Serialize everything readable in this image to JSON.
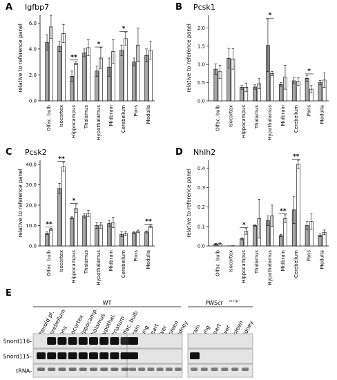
{
  "panels": {
    "A": "A",
    "B": "B",
    "C": "C",
    "D": "D",
    "E": "E"
  },
  "chart_data": [
    {
      "panel": "A",
      "type": "bar",
      "title": "Igfbp7",
      "ylabel": "relative to reference panel",
      "categories": [
        "Olfac. bulb",
        "Isocortex",
        "Hippocampus",
        "Thalamus",
        "Hypothalamus",
        "Midbrain",
        "Cerebellum",
        "Pons",
        "Medulla"
      ],
      "yticks": [
        "0.0",
        "2.0",
        "4.0",
        "6.0"
      ],
      "ylim": [
        0,
        6.6
      ],
      "series": [
        {
          "fill": "#a6a6a6",
          "values": [
            4.5,
            4.2,
            1.9,
            3.7,
            2.3,
            2.6,
            3.9,
            3.0,
            3.5
          ],
          "errors": [
            0.6,
            0.4,
            0.4,
            0.3,
            0.4,
            0.7,
            0.4,
            0.3,
            0.5
          ]
        },
        {
          "fill": "#ffffff",
          "values": [
            5.7,
            5.2,
            2.9,
            4.1,
            3.3,
            3.8,
            4.8,
            4.3,
            3.9
          ],
          "errors": [
            0.9,
            0.7,
            0.1,
            0.6,
            0.8,
            0.9,
            0.5,
            1.3,
            0.7
          ]
        }
      ],
      "significance": [
        {
          "index": 2,
          "label": "**",
          "level": 3.15
        },
        {
          "index": 4,
          "label": "*",
          "level": 4.15
        },
        {
          "index": 6,
          "label": "*",
          "level": 5.35
        }
      ]
    },
    {
      "panel": "B",
      "type": "bar",
      "title": "Pcsk1",
      "ylabel": "relative to reference panel",
      "categories": [
        "Olfac. bulb",
        "Isocortex",
        "Hippocampus",
        "Thalamus",
        "Hypothalamus",
        "Midbrain",
        "Cerebellum",
        "Pons",
        "Medulla"
      ],
      "yticks": [
        "0.0",
        "0.5",
        "1.0",
        "1.5",
        "2.0"
      ],
      "ylim": [
        0,
        2.35
      ],
      "series": [
        {
          "fill": "#a6a6a6",
          "values": [
            0.87,
            1.17,
            0.37,
            0.38,
            1.52,
            0.45,
            0.55,
            0.62,
            0.5
          ],
          "errors": [
            0.14,
            0.27,
            0.05,
            0.06,
            0.72,
            0.05,
            0.08,
            0.08,
            0.06
          ]
        },
        {
          "fill": "#ffffff",
          "values": [
            0.8,
            1.15,
            0.37,
            0.47,
            0.75,
            0.65,
            0.53,
            0.32,
            0.57
          ],
          "errors": [
            0.18,
            0.28,
            0.12,
            0.14,
            0.06,
            0.33,
            0.1,
            0.1,
            0.2
          ]
        }
      ],
      "significance": [
        {
          "index": 4,
          "label": "*",
          "level": 2.27
        },
        {
          "index": 7,
          "label": "*",
          "level": 0.74
        }
      ]
    },
    {
      "panel": "C",
      "type": "bar",
      "title": "Pcsk2",
      "ylabel": "relative to reference panel",
      "categories": [
        "Olfac. bulb",
        "Isocortex",
        "Hippocampus",
        "Thalamus",
        "Hypothalamus",
        "Midbrain",
        "Cerebellum",
        "Pons",
        "Medulla"
      ],
      "yticks": [
        "0.0",
        "10.0",
        "20.0",
        "30.0",
        "40.0"
      ],
      "ylim": [
        0,
        42
      ],
      "series": [
        {
          "fill": "#a6a6a6",
          "values": [
            6.2,
            28.2,
            13.8,
            14.8,
            10.0,
            11.0,
            5.7,
            6.5,
            6.9
          ],
          "errors": [
            0.7,
            2.5,
            0.5,
            1.0,
            1.5,
            1.5,
            1.2,
            0.4,
            0.5
          ]
        },
        {
          "fill": "#ffffff",
          "values": [
            8.2,
            38.8,
            18.3,
            16.0,
            10.2,
            11.5,
            6.2,
            7.2,
            9.6
          ],
          "errors": [
            0.5,
            2.2,
            2.0,
            1.5,
            1.5,
            2.5,
            1.0,
            0.6,
            0.6
          ]
        }
      ],
      "significance": [
        {
          "index": 0,
          "label": "**",
          "level": 9.3
        },
        {
          "index": 1,
          "label": "**",
          "level": 41.4
        },
        {
          "index": 2,
          "label": "*",
          "level": 20.8
        },
        {
          "index": 8,
          "label": "**",
          "level": 10.6
        }
      ]
    },
    {
      "panel": "D",
      "type": "bar",
      "title": "Nhlh2",
      "ylabel": "relative to reference panel",
      "categories": [
        "Olfac. bulb",
        "Isocortex",
        "Hippocampus",
        "Thalamus",
        "Hypothalamus",
        "Midbrain",
        "Cerebellum",
        "Pons",
        "Medulla"
      ],
      "yticks": [
        "0.0",
        "0.1",
        "0.2",
        "0.3",
        "0.4"
      ],
      "ylim": [
        0,
        0.44
      ],
      "series": [
        {
          "fill": "#a6a6a6",
          "values": [
            0.01,
            0.0,
            0.037,
            0.105,
            0.13,
            0.053,
            0.185,
            0.105,
            0.055
          ],
          "errors": [
            0.003,
            0.0,
            0.005,
            0.004,
            0.025,
            0.006,
            0.07,
            0.02,
            0.008
          ]
        },
        {
          "fill": "#ffffff",
          "values": [
            0.012,
            0.001,
            0.075,
            0.14,
            0.155,
            0.14,
            0.42,
            0.125,
            0.07
          ],
          "errors": [
            0.004,
            0.0,
            0.015,
            0.1,
            0.055,
            0.02,
            0.02,
            0.04,
            0.012
          ]
        }
      ],
      "significance": [
        {
          "index": 2,
          "label": "*",
          "level": 0.094
        },
        {
          "index": 5,
          "label": "**",
          "level": 0.165
        },
        {
          "index": 6,
          "label": "**",
          "level": 0.445
        }
      ]
    }
  ],
  "blot": {
    "group_wt": "WT",
    "group_pws": "PWScr",
    "group_pws_sup": "m+/p−",
    "lanes_brain": [
      "Choroid pl.",
      "Cerebellum",
      "Pons",
      "Isocortex",
      "Hippocamp.",
      "Thalamus",
      "Hypothal.",
      "Striatum",
      "Olfac. bulb"
    ],
    "lanes_tissue_wt": [
      "Brain",
      "Lung",
      "Heart",
      "Liver",
      "Spleen",
      "Kidney"
    ],
    "lanes_tissue_pws": [
      "Brain",
      "Lung",
      "Heart",
      "Liver",
      "Spleen",
      "Kidney"
    ],
    "rows": [
      "Snord116-",
      "Snord115-",
      "tRNA-"
    ]
  }
}
